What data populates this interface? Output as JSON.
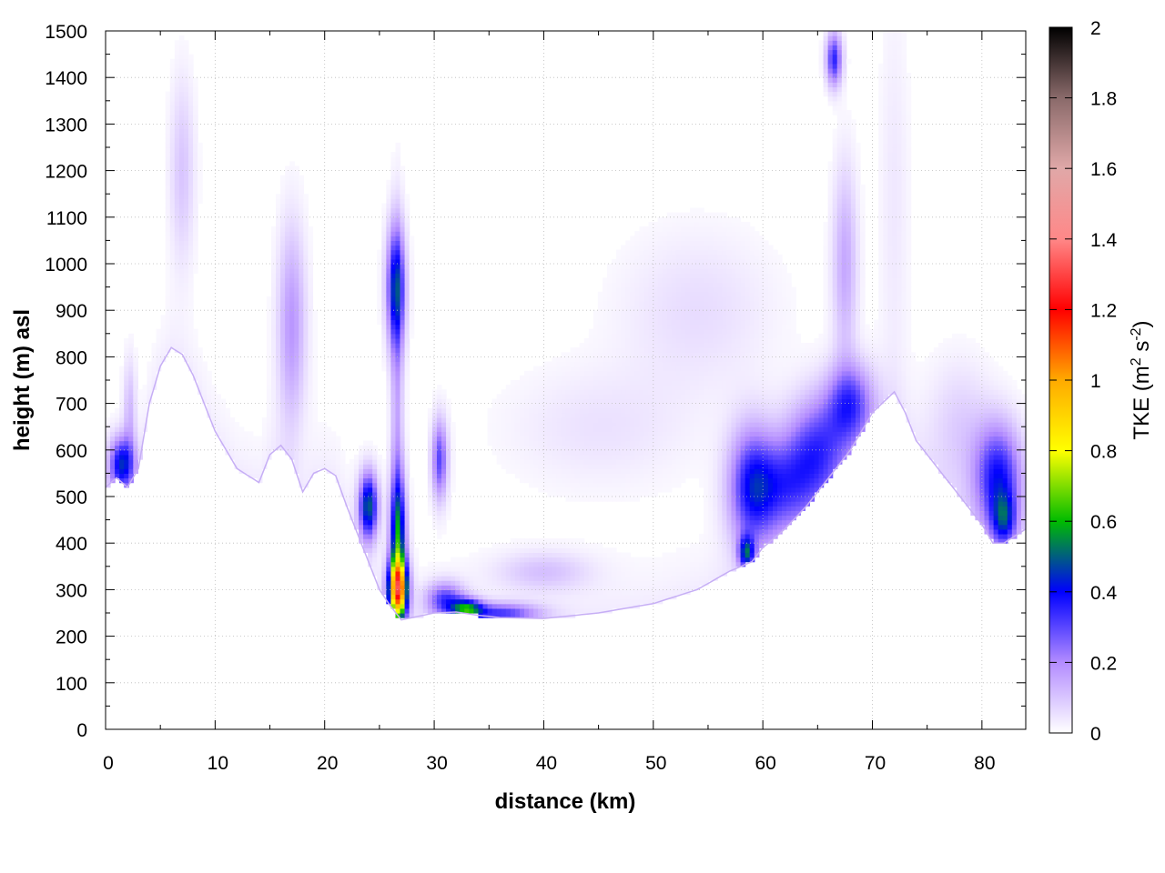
{
  "chart_data": {
    "type": "heatmap",
    "title": "",
    "xlabel": "distance (km)",
    "ylabel": "height (m) asl",
    "xlim": [
      0,
      84
    ],
    "ylim": [
      0,
      1500
    ],
    "x_ticks": [
      0,
      10,
      20,
      30,
      40,
      50,
      60,
      70,
      80
    ],
    "y_ticks": [
      0,
      100,
      200,
      300,
      400,
      500,
      600,
      700,
      800,
      900,
      1000,
      1100,
      1200,
      1300,
      1400,
      1500
    ],
    "grid": true,
    "colorbar": {
      "label_main": "TKE (m",
      "label_sup1": "2",
      "label_mid": " s",
      "label_sup2": "-2",
      "label_end": ")",
      "range": [
        0,
        2
      ],
      "ticks": [
        "0",
        "0.2",
        "0.4",
        "0.6",
        "0.8",
        "1",
        "1.2",
        "1.4",
        "1.6",
        "1.8",
        "2"
      ],
      "colors": [
        {
          "v": 0.0,
          "c": "#ffffff"
        },
        {
          "v": 0.2,
          "c": "#b38cff"
        },
        {
          "v": 0.4,
          "c": "#0000ff"
        },
        {
          "v": 0.6,
          "c": "#00bb00"
        },
        {
          "v": 0.8,
          "c": "#ffff00"
        },
        {
          "v": 1.0,
          "c": "#ffaa00"
        },
        {
          "v": 1.2,
          "c": "#ff0000"
        },
        {
          "v": 1.4,
          "c": "#ff8888"
        },
        {
          "v": 1.6,
          "c": "#e0a8a8"
        },
        {
          "v": 1.8,
          "c": "#8a6a6a"
        },
        {
          "v": 2.0,
          "c": "#000000"
        }
      ]
    },
    "terrain": [
      [
        0,
        520
      ],
      [
        1,
        540
      ],
      [
        2,
        520
      ],
      [
        3,
        560
      ],
      [
        4,
        700
      ],
      [
        5,
        780
      ],
      [
        6,
        820
      ],
      [
        7,
        805
      ],
      [
        8,
        760
      ],
      [
        9,
        700
      ],
      [
        10,
        640
      ],
      [
        12,
        560
      ],
      [
        14,
        530
      ],
      [
        15,
        590
      ],
      [
        16,
        610
      ],
      [
        17,
        580
      ],
      [
        18,
        510
      ],
      [
        19,
        550
      ],
      [
        20,
        560
      ],
      [
        21,
        545
      ],
      [
        22,
        480
      ],
      [
        23,
        420
      ],
      [
        24,
        360
      ],
      [
        25,
        300
      ],
      [
        26,
        265
      ],
      [
        27,
        235
      ],
      [
        28,
        240
      ],
      [
        30,
        250
      ],
      [
        32,
        252
      ],
      [
        34,
        245
      ],
      [
        36,
        240
      ],
      [
        40,
        238
      ],
      [
        45,
        250
      ],
      [
        50,
        270
      ],
      [
        54,
        300
      ],
      [
        57,
        340
      ],
      [
        58,
        350
      ],
      [
        59,
        360
      ],
      [
        60,
        390
      ],
      [
        62,
        430
      ],
      [
        64,
        480
      ],
      [
        66,
        540
      ],
      [
        68,
        600
      ],
      [
        70,
        680
      ],
      [
        72,
        725
      ],
      [
        73,
        680
      ],
      [
        74,
        620
      ],
      [
        76,
        560
      ],
      [
        78,
        500
      ],
      [
        80,
        440
      ],
      [
        81,
        400
      ],
      [
        82,
        400
      ],
      [
        84,
        430
      ]
    ],
    "blobs": [
      {
        "x": 1.5,
        "y": 570,
        "sx": 0.8,
        "sy": 40,
        "v": 0.42
      },
      {
        "x": 2.2,
        "y": 680,
        "sx": 0.4,
        "sy": 80,
        "v": 0.12
      },
      {
        "x": 7,
        "y": 1200,
        "sx": 0.8,
        "sy": 140,
        "v": 0.1
      },
      {
        "x": 17,
        "y": 870,
        "sx": 0.9,
        "sy": 150,
        "v": 0.18
      },
      {
        "x": 24,
        "y": 480,
        "sx": 0.6,
        "sy": 50,
        "v": 0.5
      },
      {
        "x": 26.5,
        "y": 950,
        "sx": 0.6,
        "sy": 90,
        "v": 0.42
      },
      {
        "x": 26.7,
        "y": 300,
        "sx": 0.6,
        "sy": 45,
        "v": 1.05
      },
      {
        "x": 26.7,
        "y": 420,
        "sx": 0.5,
        "sy": 90,
        "v": 0.5
      },
      {
        "x": 26.6,
        "y": 700,
        "sx": 0.4,
        "sy": 250,
        "v": 0.15
      },
      {
        "x": 30.5,
        "y": 580,
        "sx": 0.5,
        "sy": 60,
        "v": 0.3
      },
      {
        "x": 31,
        "y": 280,
        "sx": 1.2,
        "sy": 25,
        "v": 0.3
      },
      {
        "x": 33,
        "y": 260,
        "sx": 1.0,
        "sy": 15,
        "v": 0.45
      },
      {
        "x": 36,
        "y": 250,
        "sx": 2.5,
        "sy": 15,
        "v": 0.3
      },
      {
        "x": 40,
        "y": 340,
        "sx": 3,
        "sy": 30,
        "v": 0.1
      },
      {
        "x": 45,
        "y": 650,
        "sx": 6,
        "sy": 90,
        "v": 0.05
      },
      {
        "x": 54,
        "y": 900,
        "sx": 5,
        "sy": 120,
        "v": 0.06
      },
      {
        "x": 59,
        "y": 520,
        "sx": 1.5,
        "sy": 90,
        "v": 0.35
      },
      {
        "x": 58.5,
        "y": 380,
        "sx": 0.5,
        "sy": 25,
        "v": 0.4
      },
      {
        "x": 62,
        "y": 520,
        "sx": 2.0,
        "sy": 70,
        "v": 0.25
      },
      {
        "x": 65,
        "y": 600,
        "sx": 2.0,
        "sy": 80,
        "v": 0.3
      },
      {
        "x": 66.5,
        "y": 1440,
        "sx": 0.5,
        "sy": 40,
        "v": 0.35
      },
      {
        "x": 67.5,
        "y": 1000,
        "sx": 0.8,
        "sy": 150,
        "v": 0.15
      },
      {
        "x": 68,
        "y": 700,
        "sx": 1.5,
        "sy": 60,
        "v": 0.3
      },
      {
        "x": 81.5,
        "y": 540,
        "sx": 1.5,
        "sy": 80,
        "v": 0.38
      },
      {
        "x": 82,
        "y": 450,
        "sx": 0.8,
        "sy": 40,
        "v": 0.3
      },
      {
        "x": 78,
        "y": 650,
        "sx": 2,
        "sy": 100,
        "v": 0.08
      },
      {
        "x": 72,
        "y": 1150,
        "sx": 1.0,
        "sy": 300,
        "v": 0.04
      }
    ]
  }
}
